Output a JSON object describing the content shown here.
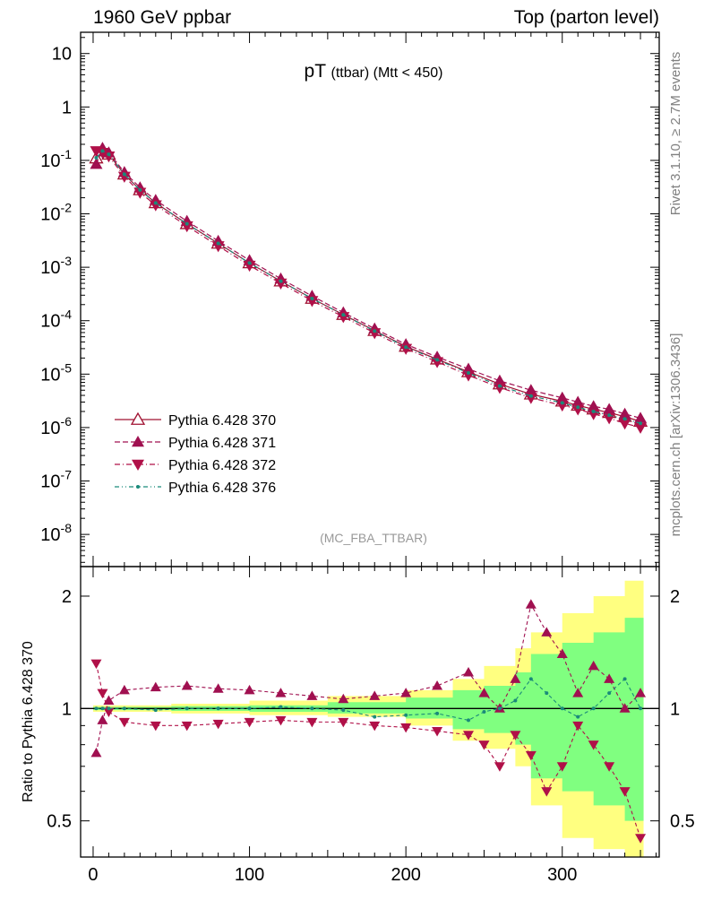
{
  "header": {
    "left": "1960 GeV ppbar",
    "right": "Top (parton level)"
  },
  "side_texts": {
    "rivet": "Rivet 3.1.10, ≥ 2.7M events",
    "mcplots": "mcplots.cern.ch [arXiv:1306.3436]"
  },
  "chart_data": [
    {
      "type": "line",
      "panel": "main",
      "title": "pT (ttbar) (Mtt < 450)",
      "title_main": "pT",
      "title_sub": "(ttbar) (Mtt < 450)",
      "watermark": "(MC_FBA_TTBAR)",
      "xlim": [
        -8,
        362
      ],
      "ylim": [
        2.5e-09,
        25
      ],
      "log_y": true,
      "y_tick_labels": [
        "10",
        "1",
        "10^-1",
        "10^-2",
        "10^-3",
        "10^-4",
        "10^-5",
        "10^-6",
        "10^-7",
        "10^-8"
      ],
      "y_tick_values": [
        10,
        1,
        0.1,
        0.01,
        0.001,
        0.0001,
        1e-05,
        1e-06,
        1e-07,
        1e-08
      ],
      "legend_position": "bottom-left",
      "series": [
        {
          "name": "Pythia 6.428 370",
          "color": "#a01030",
          "marker": "open-triangle-up",
          "style": "solid",
          "x": [
            2,
            6,
            10,
            20,
            30,
            40,
            60,
            80,
            100,
            120,
            140,
            160,
            180,
            200,
            220,
            240,
            260,
            280,
            300,
            310,
            320,
            330,
            340,
            350
          ],
          "y": [
            0.11,
            0.15,
            0.13,
            0.055,
            0.028,
            0.016,
            0.0065,
            0.0028,
            0.0012,
            0.00055,
            0.00026,
            0.00013,
            6.5e-05,
            3.3e-05,
            1.9e-05,
            1.1e-05,
            6.5e-06,
            4.2e-06,
            3.1e-06,
            2.6e-06,
            2.2e-06,
            1.9e-06,
            1.6e-06,
            1.3e-06
          ]
        },
        {
          "name": "Pythia 6.428 371",
          "color": "#a01050",
          "marker": "filled-triangle-up",
          "style": "dashed",
          "x": [
            2,
            6,
            10,
            20,
            30,
            40,
            60,
            80,
            100,
            120,
            140,
            160,
            180,
            200,
            220,
            240,
            260,
            280,
            300,
            310,
            320,
            330,
            340,
            350
          ],
          "y": [
            0.085,
            0.17,
            0.14,
            0.06,
            0.031,
            0.018,
            0.0073,
            0.0031,
            0.00135,
            0.00061,
            0.00029,
            0.000142,
            7.1e-05,
            3.6e-05,
            2.1e-05,
            1.25e-05,
            7.5e-06,
            5e-06,
            3.6e-06,
            3e-06,
            2.5e-06,
            2.2e-06,
            1.8e-06,
            1.5e-06
          ]
        },
        {
          "name": "Pythia 6.428 372",
          "color": "#b01048",
          "marker": "filled-triangle-down",
          "style": "dashdot",
          "x": [
            2,
            6,
            10,
            20,
            30,
            40,
            60,
            80,
            100,
            120,
            140,
            160,
            180,
            200,
            220,
            240,
            260,
            280,
            300,
            310,
            320,
            330,
            340,
            350
          ],
          "y": [
            0.15,
            0.14,
            0.12,
            0.05,
            0.025,
            0.0146,
            0.0059,
            0.0025,
            0.00108,
            0.0005,
            0.000236,
            0.000118,
            5.9e-05,
            3e-05,
            1.7e-05,
            9.5e-06,
            5.6e-06,
            3.6e-06,
            2.6e-06,
            2.2e-06,
            1.8e-06,
            1.5e-06,
            1.2e-06,
            1e-06
          ]
        },
        {
          "name": "Pythia 6.428 376",
          "color": "#1a8a7a",
          "marker": "small-dot",
          "style": "dashdotdot",
          "x": [
            2,
            6,
            10,
            20,
            30,
            40,
            60,
            80,
            100,
            120,
            140,
            160,
            180,
            200,
            220,
            240,
            260,
            280,
            300,
            310,
            320,
            330,
            340,
            350
          ],
          "y": [
            0.112,
            0.15,
            0.13,
            0.055,
            0.028,
            0.016,
            0.0065,
            0.0028,
            0.0012,
            0.00055,
            0.00026,
            0.000129,
            6.4e-05,
            3.2e-05,
            1.85e-05,
            1.05e-05,
            6e-06,
            3.9e-06,
            2.9e-06,
            2.4e-06,
            2e-06,
            1.7e-06,
            1.45e-06,
            1.2e-06
          ]
        }
      ]
    },
    {
      "type": "line",
      "panel": "ratio",
      "ylabel": "Ratio to Pythia 6.428 370",
      "xlim": [
        -8,
        362
      ],
      "ylim": [
        0.4,
        2.4
      ],
      "log_y": true,
      "x_tick_values": [
        0,
        100,
        200,
        300
      ],
      "x_tick_labels": [
        "0",
        "100",
        "200",
        "300"
      ],
      "y_tick_values": [
        0.5,
        1,
        2
      ],
      "y_tick_labels": [
        "0.5",
        "1",
        "2"
      ],
      "band_yellow": {
        "x": [
          0,
          50,
          100,
          150,
          200,
          230,
          250,
          270,
          280,
          300,
          320,
          340,
          352
        ],
        "lo": [
          0.98,
          0.97,
          0.96,
          0.95,
          0.9,
          0.82,
          0.78,
          0.7,
          0.55,
          0.45,
          0.42,
          0.4,
          0.4
        ],
        "hi": [
          1.02,
          1.03,
          1.05,
          1.08,
          1.12,
          1.2,
          1.3,
          1.45,
          1.6,
          1.8,
          2.0,
          2.2,
          2.3
        ]
      },
      "band_green": {
        "x": [
          0,
          50,
          100,
          150,
          200,
          230,
          250,
          270,
          280,
          300,
          320,
          340,
          352
        ],
        "lo": [
          0.99,
          0.985,
          0.98,
          0.97,
          0.94,
          0.88,
          0.86,
          0.8,
          0.65,
          0.6,
          0.55,
          0.5,
          0.45
        ],
        "hi": [
          1.01,
          1.015,
          1.02,
          1.04,
          1.07,
          1.12,
          1.15,
          1.25,
          1.4,
          1.5,
          1.6,
          1.75,
          1.85
        ]
      },
      "series": [
        {
          "name": "Pythia 6.428 371",
          "color": "#a01050",
          "marker": "filled-triangle-up",
          "x": [
            2,
            6,
            10,
            20,
            40,
            60,
            80,
            100,
            120,
            140,
            160,
            180,
            200,
            220,
            240,
            250,
            260,
            270,
            280,
            290,
            300,
            310,
            320,
            330,
            340,
            350
          ],
          "y": [
            0.76,
            0.93,
            1.05,
            1.12,
            1.14,
            1.15,
            1.13,
            1.12,
            1.1,
            1.08,
            1.06,
            1.08,
            1.1,
            1.15,
            1.25,
            1.1,
            1.0,
            1.2,
            1.9,
            1.6,
            1.4,
            1.1,
            1.3,
            1.2,
            1.0,
            1.1
          ]
        },
        {
          "name": "Pythia 6.428 372",
          "color": "#b01048",
          "marker": "filled-triangle-down",
          "x": [
            2,
            6,
            10,
            20,
            40,
            60,
            80,
            100,
            120,
            140,
            160,
            180,
            200,
            220,
            240,
            250,
            260,
            270,
            280,
            290,
            300,
            310,
            320,
            330,
            340,
            350
          ],
          "y": [
            1.32,
            1.1,
            0.98,
            0.92,
            0.9,
            0.9,
            0.91,
            0.92,
            0.93,
            0.92,
            0.92,
            0.9,
            0.89,
            0.87,
            0.85,
            0.8,
            0.7,
            0.85,
            0.75,
            0.6,
            0.7,
            0.9,
            0.8,
            0.7,
            0.6,
            0.45
          ]
        },
        {
          "name": "Pythia 6.428 376",
          "color": "#1a8a7a",
          "marker": "small-dot",
          "x": [
            2,
            6,
            10,
            20,
            40,
            60,
            80,
            100,
            120,
            140,
            160,
            180,
            200,
            220,
            240,
            250,
            260,
            270,
            280,
            290,
            300,
            310,
            320,
            330,
            340,
            350
          ],
          "y": [
            1.0,
            1.0,
            1.0,
            1.0,
            0.99,
            1.0,
            1.0,
            1.0,
            1.01,
            1.0,
            0.99,
            0.95,
            0.96,
            0.97,
            0.93,
            0.98,
            1.0,
            1.05,
            1.2,
            1.1,
            1.0,
            0.95,
            1.0,
            1.1,
            1.2,
            1.0
          ]
        }
      ]
    }
  ]
}
